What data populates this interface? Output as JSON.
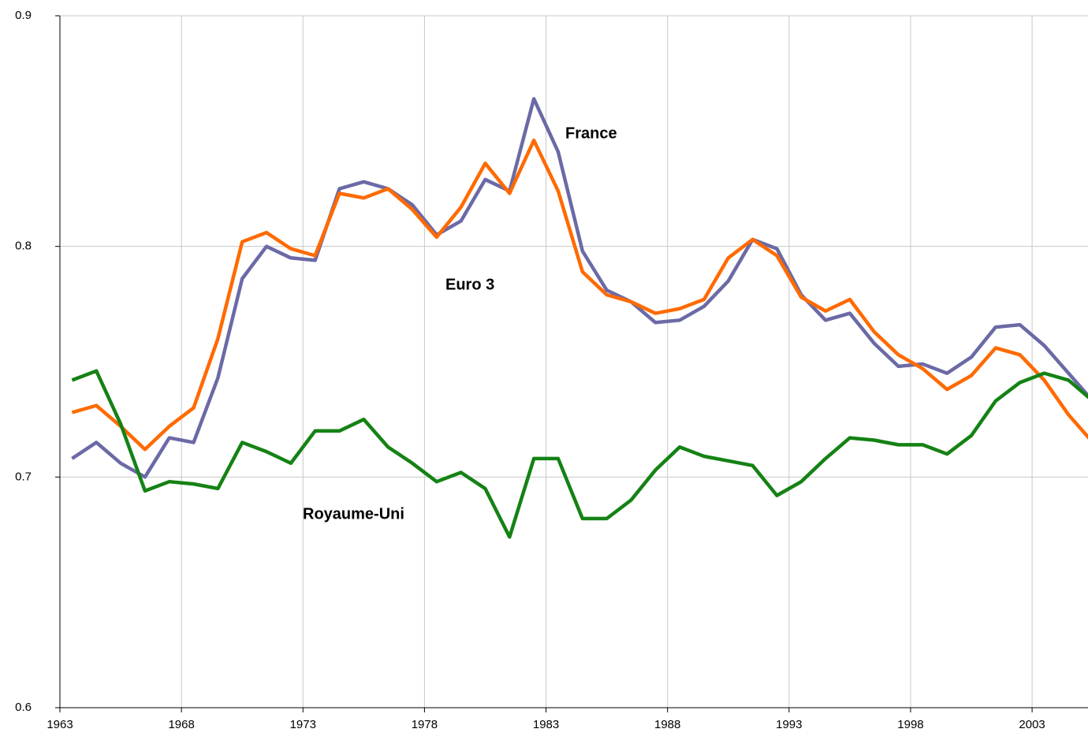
{
  "chart_data": {
    "type": "line",
    "x": [
      1963.5,
      1964.5,
      1965.5,
      1966.5,
      1967.5,
      1968.5,
      1969.5,
      1970.5,
      1971.5,
      1972.5,
      1973.5,
      1974.5,
      1975.5,
      1976.5,
      1977.5,
      1978.5,
      1979.5,
      1980.5,
      1981.5,
      1982.5,
      1983.5,
      1984.5,
      1985.5,
      1986.5,
      1987.5,
      1988.5,
      1989.5,
      1990.5,
      1991.5,
      1992.5,
      1993.5,
      1994.5,
      1995.5,
      1996.5,
      1997.5,
      1998.5,
      1999.5,
      2000.5,
      2001.5,
      2002.5,
      2003.5,
      2004.5,
      2005.5
    ],
    "series": [
      {
        "name": "France",
        "color": "#6b6aa6",
        "values": [
          0.708,
          0.715,
          0.706,
          0.7,
          0.717,
          0.715,
          0.743,
          0.786,
          0.8,
          0.795,
          0.794,
          0.825,
          0.828,
          0.825,
          0.818,
          0.805,
          0.811,
          0.829,
          0.824,
          0.864,
          0.841,
          0.798,
          0.781,
          0.776,
          0.767,
          0.768,
          0.774,
          0.785,
          0.803,
          0.799,
          0.779,
          0.768,
          0.771,
          0.758,
          0.748,
          0.749,
          0.745,
          0.752,
          0.765,
          0.766,
          0.757,
          0.745,
          0.733
        ]
      },
      {
        "name": "Euro 3",
        "color": "#ff6a00",
        "values": [
          0.728,
          0.731,
          0.722,
          0.712,
          0.722,
          0.73,
          0.76,
          0.802,
          0.806,
          0.799,
          0.796,
          0.823,
          0.821,
          0.825,
          0.816,
          0.804,
          0.817,
          0.836,
          0.823,
          0.846,
          0.824,
          0.789,
          0.779,
          0.776,
          0.771,
          0.773,
          0.777,
          0.795,
          0.803,
          0.796,
          0.778,
          0.772,
          0.777,
          0.763,
          0.753,
          0.747,
          0.738,
          0.744,
          0.756,
          0.753,
          0.742,
          0.727,
          0.715
        ]
      },
      {
        "name": "Royaume-Uni",
        "color": "#148214",
        "values": [
          0.742,
          0.746,
          0.723,
          0.694,
          0.698,
          0.697,
          0.695,
          0.715,
          0.711,
          0.706,
          0.72,
          0.72,
          0.725,
          0.713,
          0.706,
          0.698,
          0.702,
          0.695,
          0.674,
          0.708,
          0.708,
          0.682,
          0.682,
          0.69,
          0.703,
          0.713,
          0.709,
          0.707,
          0.705,
          0.692,
          0.698,
          0.708,
          0.717,
          0.716,
          0.714,
          0.714,
          0.71,
          0.718,
          0.733,
          0.741,
          0.745,
          0.742,
          0.733
        ]
      }
    ],
    "xlim": [
      1963,
      2005.3
    ],
    "xticks": [
      1963,
      1968,
      1973,
      1978,
      1983,
      1988,
      1993,
      1998,
      2003
    ],
    "ylim": [
      0.6,
      0.9
    ],
    "yticks": [
      0.6,
      0.7,
      0.8,
      0.9
    ],
    "grid": true
  }
}
